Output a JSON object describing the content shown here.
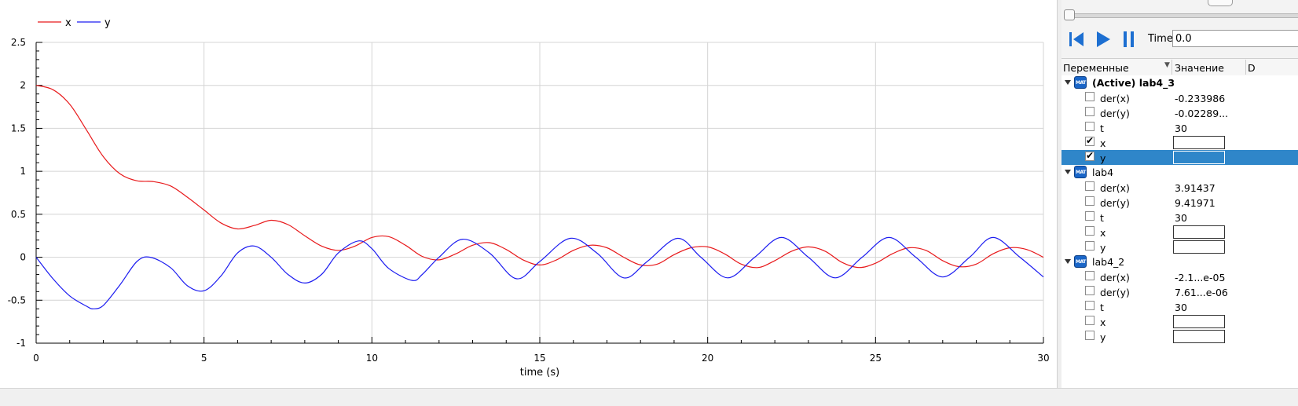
{
  "plot": {
    "legend": [
      {
        "label": "x",
        "color": "#e8191b"
      },
      {
        "label": "y",
        "color": "#1c1cf0"
      }
    ],
    "xlabel": "time (s)"
  },
  "chart_data": {
    "type": "line",
    "xlabel": "time (s)",
    "ylabel": "",
    "xlim": [
      0,
      30
    ],
    "ylim": [
      -1,
      2.5
    ],
    "xticks": [
      0,
      5,
      10,
      15,
      20,
      25,
      30
    ],
    "yticks": [
      -1,
      -0.5,
      0,
      0.5,
      1,
      1.5,
      2,
      2.5
    ],
    "grid": true,
    "legend_position": "top-left",
    "series": [
      {
        "name": "x",
        "color": "#e8191b",
        "x": [
          0,
          0.5,
          1,
          1.5,
          2,
          2.5,
          3,
          3.5,
          4,
          4.5,
          5,
          5.5,
          6,
          6.5,
          7,
          7.5,
          8,
          8.5,
          9,
          9.5,
          10,
          10.5,
          11,
          11.5,
          12,
          12.5,
          13,
          13.5,
          14,
          14.5,
          15,
          15.5,
          16,
          16.5,
          17,
          17.5,
          18,
          18.5,
          19,
          19.5,
          20,
          20.5,
          21,
          21.5,
          22,
          22.5,
          23,
          23.5,
          24,
          24.5,
          25,
          25.5,
          26,
          26.5,
          27,
          27.5,
          28,
          28.5,
          29,
          29.5,
          30
        ],
        "y": [
          2.0,
          1.95,
          1.78,
          1.48,
          1.17,
          0.97,
          0.89,
          0.88,
          0.83,
          0.7,
          0.55,
          0.4,
          0.33,
          0.37,
          0.43,
          0.38,
          0.25,
          0.13,
          0.08,
          0.13,
          0.23,
          0.24,
          0.14,
          0.01,
          -0.03,
          0.04,
          0.14,
          0.17,
          0.09,
          -0.03,
          -0.09,
          -0.03,
          0.08,
          0.14,
          0.11,
          0.0,
          -0.09,
          -0.08,
          0.03,
          0.11,
          0.12,
          0.04,
          -0.08,
          -0.12,
          -0.04,
          0.07,
          0.12,
          0.07,
          -0.06,
          -0.12,
          -0.07,
          0.04,
          0.11,
          0.08,
          -0.04,
          -0.11,
          -0.08,
          0.04,
          0.11,
          0.09,
          0.0
        ]
      },
      {
        "name": "y",
        "color": "#1c1cf0",
        "x": [
          0,
          0.5,
          1,
          1.5,
          1.7,
          2,
          2.5,
          3,
          3.4,
          4,
          4.5,
          5,
          5.5,
          6,
          6.5,
          7,
          7.5,
          8,
          8.5,
          9,
          9.6,
          10,
          10.5,
          11.2,
          11.5,
          12,
          12.7,
          13.5,
          14.3,
          15,
          15.9,
          16.7,
          17.5,
          18.2,
          19.1,
          19.8,
          20.6,
          21.4,
          22.2,
          23,
          23.8,
          24.6,
          25.4,
          26.2,
          27,
          27.8,
          28.5,
          29.3,
          30
        ],
        "y": [
          0.0,
          -0.25,
          -0.45,
          -0.57,
          -0.6,
          -0.56,
          -0.32,
          -0.05,
          0.0,
          -0.12,
          -0.33,
          -0.39,
          -0.22,
          0.05,
          0.13,
          0.0,
          -0.2,
          -0.3,
          -0.2,
          0.05,
          0.19,
          0.1,
          -0.13,
          -0.27,
          -0.2,
          0.0,
          0.21,
          0.05,
          -0.25,
          -0.05,
          0.22,
          0.05,
          -0.24,
          -0.05,
          0.22,
          0.0,
          -0.24,
          0.0,
          0.23,
          0.0,
          -0.24,
          0.0,
          0.23,
          0.0,
          -0.23,
          0.0,
          0.23,
          0.0,
          -0.23
        ]
      }
    ]
  },
  "controls": {
    "time_label": "Time:",
    "time_value": "0.0",
    "icons": [
      "rewind-icon",
      "play-icon",
      "pause-icon"
    ]
  },
  "variables": {
    "col_vars": "Переменные",
    "col_value": "Значение",
    "col_extra": "D",
    "models": [
      {
        "name": "(Active) lab4_3",
        "bold": true,
        "vars": [
          {
            "name": "der(x)",
            "value": "-0.233986",
            "checked": false
          },
          {
            "name": "der(y)",
            "value": "-0.02289...",
            "checked": false
          },
          {
            "name": "t",
            "value": "30",
            "checked": false
          },
          {
            "name": "x",
            "value": "",
            "checked": true
          },
          {
            "name": "y",
            "value": "",
            "checked": true
          }
        ]
      },
      {
        "name": "lab4",
        "bold": false,
        "vars": [
          {
            "name": "der(x)",
            "value": "3.91437",
            "checked": false
          },
          {
            "name": "der(y)",
            "value": "9.41971",
            "checked": false
          },
          {
            "name": "t",
            "value": "30",
            "checked": false
          },
          {
            "name": "x",
            "value": "",
            "checked": false
          },
          {
            "name": "y",
            "value": "",
            "checked": false
          }
        ]
      },
      {
        "name": "lab4_2",
        "bold": false,
        "vars": [
          {
            "name": "der(x)",
            "value": "-2.1...e-05",
            "checked": false
          },
          {
            "name": "der(y)",
            "value": "7.61...e-06",
            "checked": false
          },
          {
            "name": "t",
            "value": "30",
            "checked": false
          },
          {
            "name": "x",
            "value": "",
            "checked": false
          },
          {
            "name": "y",
            "value": "",
            "checked": false
          }
        ]
      }
    ]
  }
}
